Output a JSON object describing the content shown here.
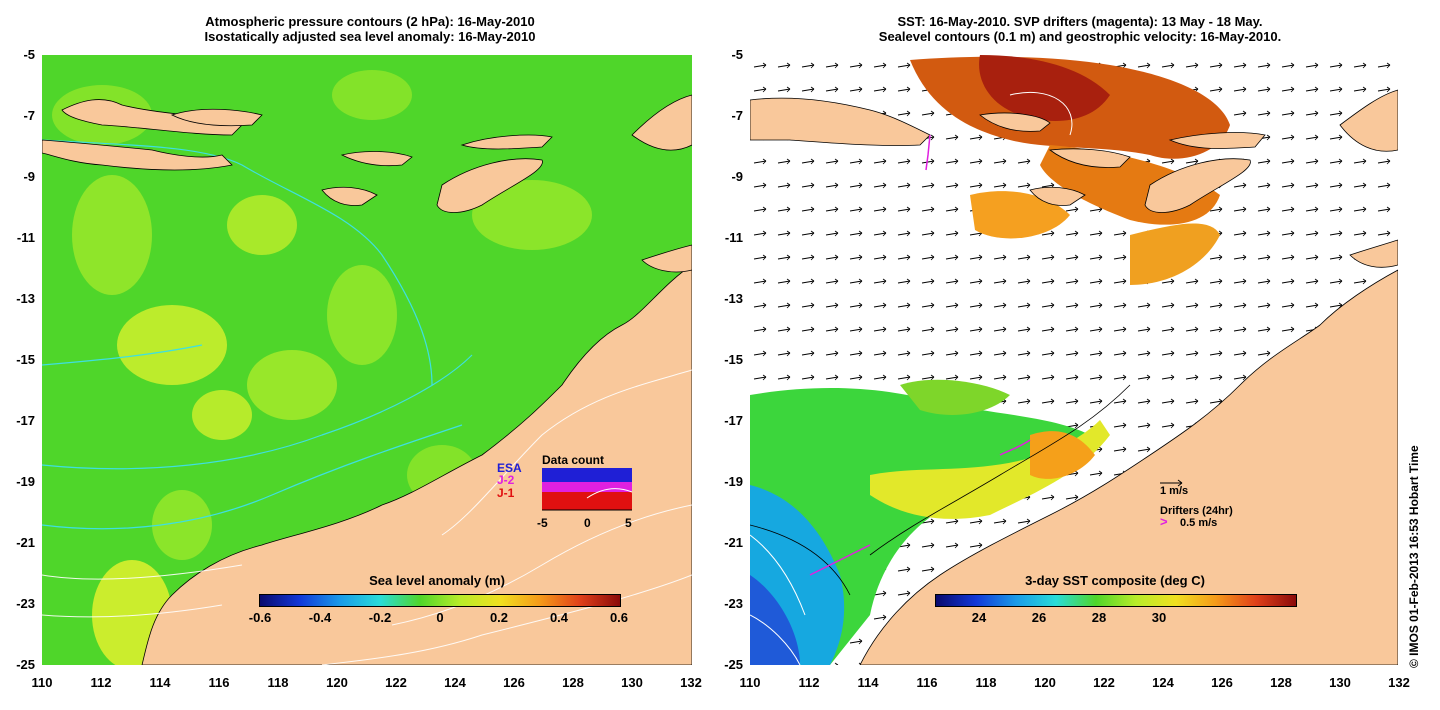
{
  "left_panel": {
    "title_line1": "Atmospheric pressure contours (2 hPa): 16-May-2010",
    "title_line2": "Isostatically adjusted sea level anomaly: 16-May-2010",
    "colorbar_label": "Sea level anomaly (m)",
    "colorbar_ticks": [
      "-0.6",
      "-0.4",
      "-0.2",
      "0",
      "0.2",
      "0.4",
      "0.6"
    ],
    "legend": {
      "title": "Data count",
      "series": [
        {
          "label": "ESA",
          "color": "#1f1fd6"
        },
        {
          "label": "J-2",
          "color": "#e020e0"
        },
        {
          "label": "J-1",
          "color": "#e01010"
        }
      ],
      "x_ticks": [
        "-5",
        "0",
        "5"
      ]
    }
  },
  "right_panel": {
    "title_line1": "SST: 16-May-2010. SVP drifters (magenta): 13 May - 18 May.",
    "title_line2": "Sealevel contours (0.1 m) and geostrophic velocity: 16-May-2010.",
    "colorbar_label": "3-day SST composite (deg C)",
    "colorbar_ticks": [
      "24",
      "26",
      "28",
      "30"
    ],
    "velocity_scale": "1 m/s",
    "drifters_label": "Drifters (24hr)",
    "drifters_scale": "0.5 m/s"
  },
  "y_ticks": [
    "-5",
    "-7",
    "-9",
    "-11",
    "-13",
    "-15",
    "-17",
    "-19",
    "-21",
    "-23",
    "-25"
  ],
  "x_ticks": [
    "110",
    "112",
    "114",
    "116",
    "118",
    "120",
    "122",
    "124",
    "126",
    "128",
    "130",
    "132"
  ],
  "credit": "© IMOS 01-Feb-2013 16:53 Hobart Time",
  "colors": {
    "land": "#f9c89b",
    "sea_green": "#4fd62a",
    "drifter": "#e020e0"
  }
}
